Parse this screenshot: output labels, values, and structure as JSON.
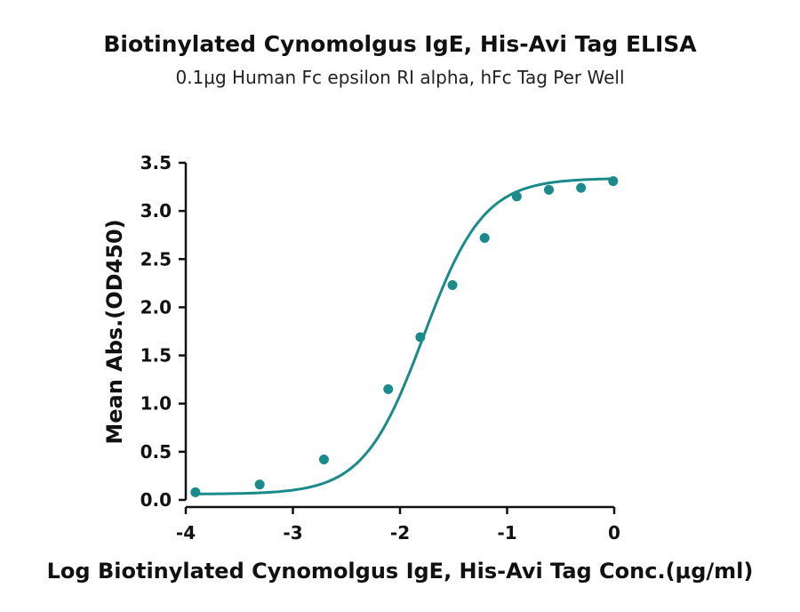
{
  "chart_data": {
    "type": "scatter",
    "title": "Biotinylated Cynomolgus IgE, His-Avi Tag ELISA",
    "subtitle": "0.1μg Human Fc epsilon RI alpha, hFc Tag Per Well",
    "xlabel": "Log Biotinylated Cynomolgus IgE, His-Avi Tag Conc.(μg/ml)",
    "ylabel": "Mean Abs.(OD450)",
    "xlim": [
      -4,
      0
    ],
    "ylim": [
      0,
      3.5
    ],
    "x_ticks": [
      "-4",
      "-3",
      "-2",
      "-1",
      "0"
    ],
    "y_ticks": [
      "0.0",
      "0.5",
      "1.0",
      "1.5",
      "2.0",
      "2.5",
      "3.0",
      "3.5"
    ],
    "grid": false,
    "color": "#1a8a8a",
    "series": [
      {
        "x": [
          -3.91,
          -3.31,
          -2.71,
          -2.11,
          -1.81,
          -1.51,
          -1.21,
          -0.91,
          -0.61,
          -0.31,
          -0.01
        ],
        "y": [
          0.08,
          0.16,
          0.42,
          1.15,
          1.69,
          2.23,
          2.72,
          3.15,
          3.22,
          3.24,
          3.31
        ]
      }
    ],
    "fit_curve": true
  }
}
